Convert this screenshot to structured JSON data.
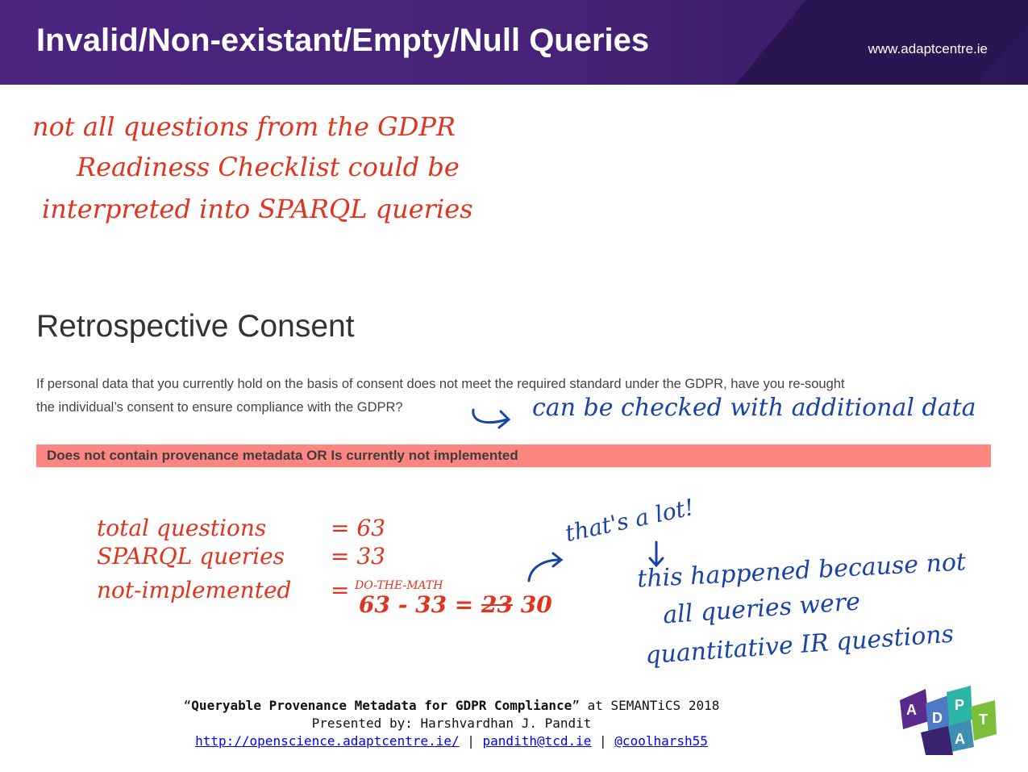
{
  "header": {
    "title": "Invalid/Non-existant/Empty/Null Queries",
    "site": "www.adaptcentre.ie"
  },
  "handwriting_top": {
    "line1": "not all questions from the GDPR",
    "line2": "Readiness Checklist could be",
    "line3": "interpreted into SPARQL queries"
  },
  "section": {
    "title": "Retrospective Consent",
    "question_line1": "If personal data that you currently hold on the basis of consent does not meet the required standard under the GDPR, have you re-sought",
    "question_line2": "the individual’s consent to ensure compliance with the GDPR?",
    "annotation": "can be checked with additional data",
    "status_bar": "Does not contain provenance metadata OR Is currently not implemented"
  },
  "stats": {
    "total_label": "total questions",
    "total_value": "= 63",
    "sparql_label": "SPARQL queries",
    "sparql_value": "= 33",
    "notimpl_label": "not-implemented",
    "notimpl_eq": "=",
    "do_the_math": "DO-THE-MATH",
    "calc": "63 - 33 =",
    "struck": "23",
    "result": "30"
  },
  "blue_notes": {
    "lot": "that's a lot!",
    "line1": "this happened because not",
    "line2": "all queries were",
    "line3": "quantitative IR questions"
  },
  "footer": {
    "quote_open": "“",
    "paper_title": "Queryable Provenance Metadata for GDPR Compliance",
    "quote_close": "”",
    "venue": " at SEMANTiCS 2018",
    "presenter": "Presented by: Harshvardhan J. Pandit",
    "link1": "http://openscience.adaptcentre.ie/",
    "sep1": " | ",
    "link2": "pandith@tcd.ie",
    "sep2": " | ",
    "link3": "@coolharsh55"
  },
  "logo": {
    "letters": [
      "A",
      "D",
      "A",
      "P",
      "T"
    ],
    "colors": {
      "purple": "#5a2a8c",
      "blue": "#4e79c4",
      "teal": "#2bb5a6",
      "green": "#7cbf3b",
      "dark": "#3a2470"
    }
  },
  "colors": {
    "header": "#4b2581",
    "red_ink": "#e0341e",
    "blue_ink": "#1744a6",
    "status_bar": "#ff8680"
  }
}
